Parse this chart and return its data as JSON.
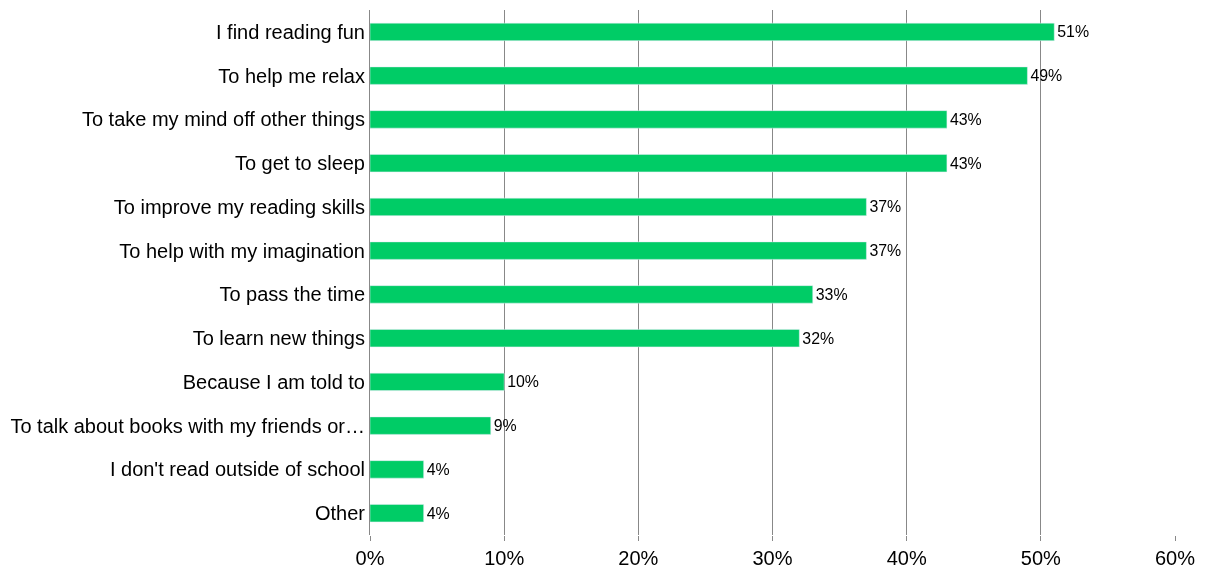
{
  "chart_data": {
    "type": "bar",
    "orientation": "horizontal",
    "categories": [
      "I find reading fun",
      "To help me relax",
      "To take my mind off other things",
      "To get to sleep",
      "To improve my reading skills",
      "To help with my imagination",
      "To pass the time",
      "To learn new things",
      "Because I am told to",
      "To talk about books with my friends or…",
      "I don't read outside of school",
      "Other"
    ],
    "values": [
      51,
      49,
      43,
      43,
      37,
      37,
      33,
      32,
      10,
      9,
      4,
      4
    ],
    "color": "#00cc66",
    "value_labels": [
      "51%",
      "49%",
      "43%",
      "43%",
      "37%",
      "37%",
      "33%",
      "32%",
      "10%",
      "9%",
      "4%",
      "4%"
    ],
    "xlim": [
      0,
      60
    ],
    "xticks": [
      {
        "value": 0,
        "label": "0%"
      },
      {
        "value": 10,
        "label": "10%"
      },
      {
        "value": 20,
        "label": "20%"
      },
      {
        "value": 30,
        "label": "30%"
      },
      {
        "value": 40,
        "label": "40%"
      },
      {
        "value": 50,
        "label": "50%"
      },
      {
        "value": 60,
        "label": "60%"
      }
    ],
    "grid": "x",
    "legend": false
  }
}
